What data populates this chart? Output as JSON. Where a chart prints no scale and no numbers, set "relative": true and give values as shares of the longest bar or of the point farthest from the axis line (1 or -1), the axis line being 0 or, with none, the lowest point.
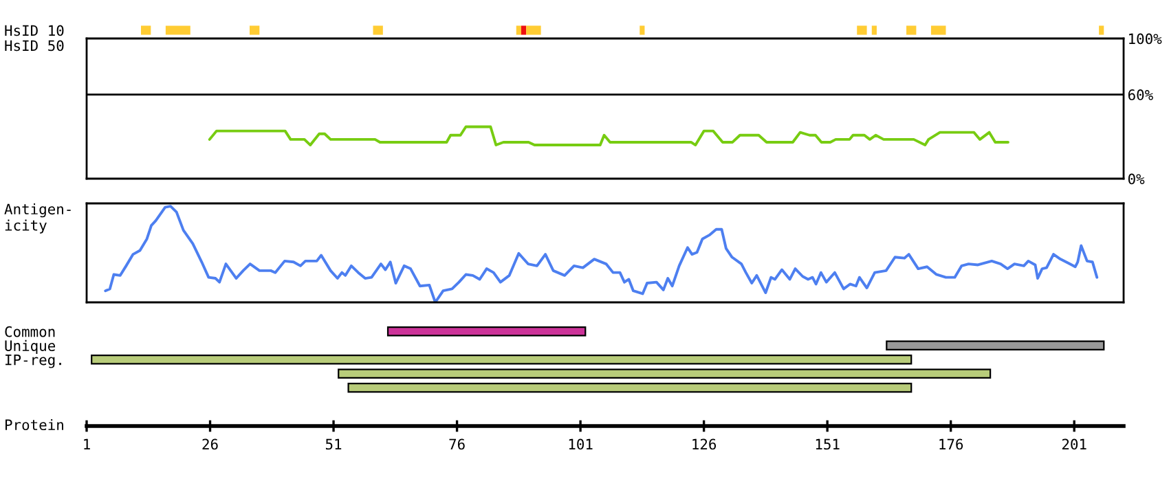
{
  "chart_data": [
    {
      "type": "bar",
      "orientation": "horizontal",
      "categories": [
        "HsID 10",
        "HsID 50"
      ],
      "xlim": [
        1,
        211
      ],
      "tick_labels": "y",
      "series": [
        {
          "color": "#ffcc33",
          "values": [
            2,
            null
          ],
          "base": [
            12,
            null
          ]
        },
        {
          "color": "#ffcc33",
          "values": [
            5,
            null
          ],
          "base": [
            17,
            null
          ]
        },
        {
          "color": "#ffcc33",
          "values": [
            2,
            null
          ],
          "base": [
            34,
            null
          ]
        },
        {
          "color": "#ffcc33",
          "values": [
            2,
            null
          ],
          "base": [
            59,
            null
          ]
        },
        {
          "color": "#ffcc33",
          "values": [
            1,
            null
          ],
          "base": [
            88,
            null
          ]
        },
        {
          "color": "#ee1111",
          "values": [
            1,
            null
          ],
          "base": [
            89,
            null
          ]
        },
        {
          "color": "#ffcc33",
          "values": [
            3,
            null
          ],
          "base": [
            90,
            null
          ]
        },
        {
          "color": "#ffcc33",
          "values": [
            1,
            null
          ],
          "base": [
            113,
            null
          ]
        },
        {
          "color": "#ffcc33",
          "values": [
            2,
            null
          ],
          "base": [
            157,
            null
          ]
        },
        {
          "color": "#ffcc33",
          "values": [
            1,
            null
          ],
          "base": [
            160,
            null
          ]
        },
        {
          "color": "#ffcc33",
          "values": [
            2,
            null
          ],
          "base": [
            167,
            null
          ]
        },
        {
          "color": "#ffcc33",
          "values": [
            3,
            null
          ],
          "base": [
            172,
            null
          ]
        },
        {
          "color": "#ffcc33",
          "values": [
            1,
            null
          ],
          "base": [
            206,
            null
          ]
        }
      ]
    },
    {
      "type": "line",
      "xlim": [
        1,
        211
      ],
      "ylim": [
        0,
        100
      ],
      "yticks": [
        {
          "value": 0,
          "label": "0%"
        },
        {
          "value": 60,
          "label": "60%"
        },
        {
          "value": 100,
          "label": "100%"
        }
      ],
      "tick_labels": "y",
      "ref_lines": [
        {
          "axis": "y",
          "value": 60,
          "color": "#000000"
        }
      ],
      "series": [
        {
          "color": "#77cc11",
          "x": [
            25.9,
            27.3,
            41.2,
            42.3,
            45.1,
            46.3,
            48.1,
            49.2,
            50.4,
            59.4,
            60.4,
            73.9,
            74.7,
            76.7,
            77.8,
            82.8,
            83.9,
            85.4,
            90.5,
            91.7,
            105.0,
            105.8,
            107.0,
            123.4,
            124.3,
            126.0,
            127.9,
            129.8,
            131.8,
            133.3,
            137.1,
            138.7,
            144.0,
            145.5,
            147.4,
            148.6,
            149.8,
            151.6,
            152.7,
            155.5,
            156.2,
            158.5,
            159.6,
            160.8,
            162.4,
            168.5,
            170.8,
            171.5,
            173.8,
            180.7,
            181.9,
            183.8,
            185.0,
            187.6
          ],
          "values": [
            28,
            34,
            34,
            28,
            28,
            24,
            32,
            32,
            28,
            28,
            26,
            26,
            31,
            31,
            37,
            37,
            24,
            26,
            26,
            24,
            24,
            31,
            26,
            26,
            24,
            34,
            34,
            26,
            26,
            31,
            31,
            26,
            26,
            33,
            31,
            31,
            26,
            26,
            28,
            28,
            31,
            31,
            28,
            31,
            28,
            28,
            24,
            28,
            33,
            33,
            28,
            33,
            26,
            26
          ]
        }
      ]
    },
    {
      "type": "line",
      "relative": true,
      "xlim": [
        1,
        211
      ],
      "tick_labels": false,
      "ylabel": "Antigen-\nicity",
      "series": [
        {
          "color": "#4d7ff0",
          "x": [
            4.8,
            5.7,
            6.5,
            7.8,
            9.0,
            10.4,
            11.8,
            13.2,
            14.1,
            15.0,
            16.9,
            18.0,
            19.2,
            20.6,
            22.5,
            24.3,
            25.7,
            27.1,
            27.9,
            29.2,
            29.9,
            31.3,
            32.7,
            34.1,
            36.0,
            38.3,
            39.2,
            41.1,
            42.9,
            44.3,
            45.3,
            47.6,
            48.5,
            50.4,
            51.8,
            52.7,
            53.4,
            54.6,
            56.0,
            57.4,
            58.7,
            60.6,
            61.5,
            62.5,
            63.6,
            65.3,
            66.6,
            68.5,
            70.4,
            71.6,
            73.2,
            75.0,
            76.4,
            77.8,
            79.2,
            80.6,
            82.0,
            83.4,
            84.8,
            86.6,
            88.5,
            90.4,
            92.2,
            93.9,
            95.5,
            97.8,
            99.7,
            101.5,
            103.8,
            106.2,
            107.6,
            109.0,
            109.9,
            110.8,
            111.7,
            113.6,
            114.5,
            116.4,
            117.8,
            118.7,
            119.6,
            121.0,
            122.7,
            123.6,
            124.6,
            125.7,
            127.1,
            128.5,
            129.6,
            130.5,
            131.7,
            133.6,
            134.5,
            135.7,
            136.7,
            138.5,
            139.6,
            140.4,
            141.8,
            143.4,
            144.5,
            146.0,
            147.1,
            148.0,
            148.7,
            149.7,
            150.8,
            152.5,
            154.3,
            155.6,
            156.8,
            157.5,
            159.0,
            160.6,
            162.9,
            164.7,
            166.6,
            167.5,
            169.4,
            171.2,
            173.1,
            175.0,
            176.8,
            178.2,
            179.6,
            181.5,
            184.3,
            186.1,
            187.5,
            188.9,
            190.8,
            191.7,
            193.1,
            193.6,
            194.5,
            195.4,
            196.8,
            198.2,
            200.1,
            201.2,
            201.7,
            202.4,
            203.6,
            204.7,
            205.6
          ],
          "values": [
            0.12,
            0.14,
            0.29,
            0.28,
            0.38,
            0.5,
            0.54,
            0.66,
            0.8,
            0.85,
            0.99,
            1,
            0.94,
            0.75,
            0.61,
            0.42,
            0.26,
            0.25,
            0.21,
            0.4,
            0.35,
            0.25,
            0.33,
            0.4,
            0.33,
            0.33,
            0.31,
            0.43,
            0.42,
            0.38,
            0.43,
            0.43,
            0.49,
            0.33,
            0.25,
            0.31,
            0.28,
            0.38,
            0.31,
            0.25,
            0.26,
            0.4,
            0.34,
            0.42,
            0.2,
            0.38,
            0.35,
            0.17,
            0.18,
            0,
            0.12,
            0.14,
            0.21,
            0.29,
            0.28,
            0.24,
            0.35,
            0.31,
            0.21,
            0.28,
            0.51,
            0.4,
            0.38,
            0.5,
            0.33,
            0.28,
            0.38,
            0.36,
            0.45,
            0.4,
            0.31,
            0.31,
            0.21,
            0.24,
            0.12,
            0.09,
            0.2,
            0.21,
            0.13,
            0.25,
            0.17,
            0.38,
            0.57,
            0.5,
            0.52,
            0.66,
            0.7,
            0.76,
            0.76,
            0.56,
            0.47,
            0.4,
            0.31,
            0.2,
            0.28,
            0.1,
            0.26,
            0.24,
            0.34,
            0.24,
            0.35,
            0.27,
            0.24,
            0.26,
            0.19,
            0.31,
            0.21,
            0.31,
            0.14,
            0.19,
            0.17,
            0.26,
            0.15,
            0.31,
            0.33,
            0.47,
            0.46,
            0.5,
            0.35,
            0.37,
            0.29,
            0.26,
            0.26,
            0.38,
            0.4,
            0.39,
            0.43,
            0.4,
            0.35,
            0.4,
            0.38,
            0.43,
            0.39,
            0.25,
            0.35,
            0.36,
            0.5,
            0.45,
            0.4,
            0.37,
            0.42,
            0.59,
            0.43,
            0.42,
            0.26
          ]
        }
      ]
    },
    {
      "type": "bar",
      "orientation": "horizontal",
      "categories": [
        "Common",
        "Unique",
        "IP-reg.",
        null,
        null
      ],
      "xlim": [
        1,
        211
      ],
      "xticks": [
        1,
        26,
        51,
        76,
        101,
        126,
        151,
        176,
        201
      ],
      "xlabel": "Protein",
      "tick_labels": "xy",
      "series": [
        {
          "colors": [
            "#cc3399",
            "#999999",
            "#b8cc7a",
            "#b8cc7a",
            "#b8cc7a"
          ],
          "values": [
            40,
            44,
            166,
            132,
            114
          ],
          "base": [
            62,
            163,
            2,
            52,
            54
          ]
        }
      ]
    }
  ]
}
